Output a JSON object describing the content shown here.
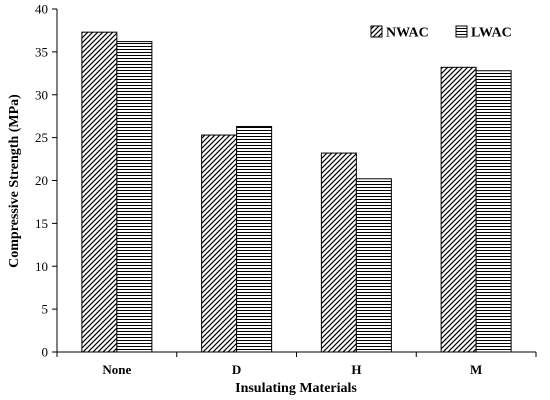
{
  "chart_data": {
    "type": "bar",
    "categories": [
      "None",
      "D",
      "H",
      "M"
    ],
    "series": [
      {
        "name": "NWAC",
        "pattern": "diagonal-hatch",
        "values": [
          37.3,
          25.3,
          23.2,
          33.2
        ]
      },
      {
        "name": "LWAC",
        "pattern": "horizontal-lines",
        "values": [
          36.2,
          26.3,
          20.2,
          32.8
        ]
      }
    ],
    "xlabel": "Insulating Materials",
    "ylabel": "Compressive Strength (MPa)",
    "ylim": [
      0,
      40
    ],
    "yticks": [
      0,
      5,
      10,
      15,
      20,
      25,
      30,
      35,
      40
    ],
    "grid": false,
    "legend_position": "top-right",
    "colors": {
      "stroke": "#000000",
      "background": "#ffffff"
    }
  }
}
